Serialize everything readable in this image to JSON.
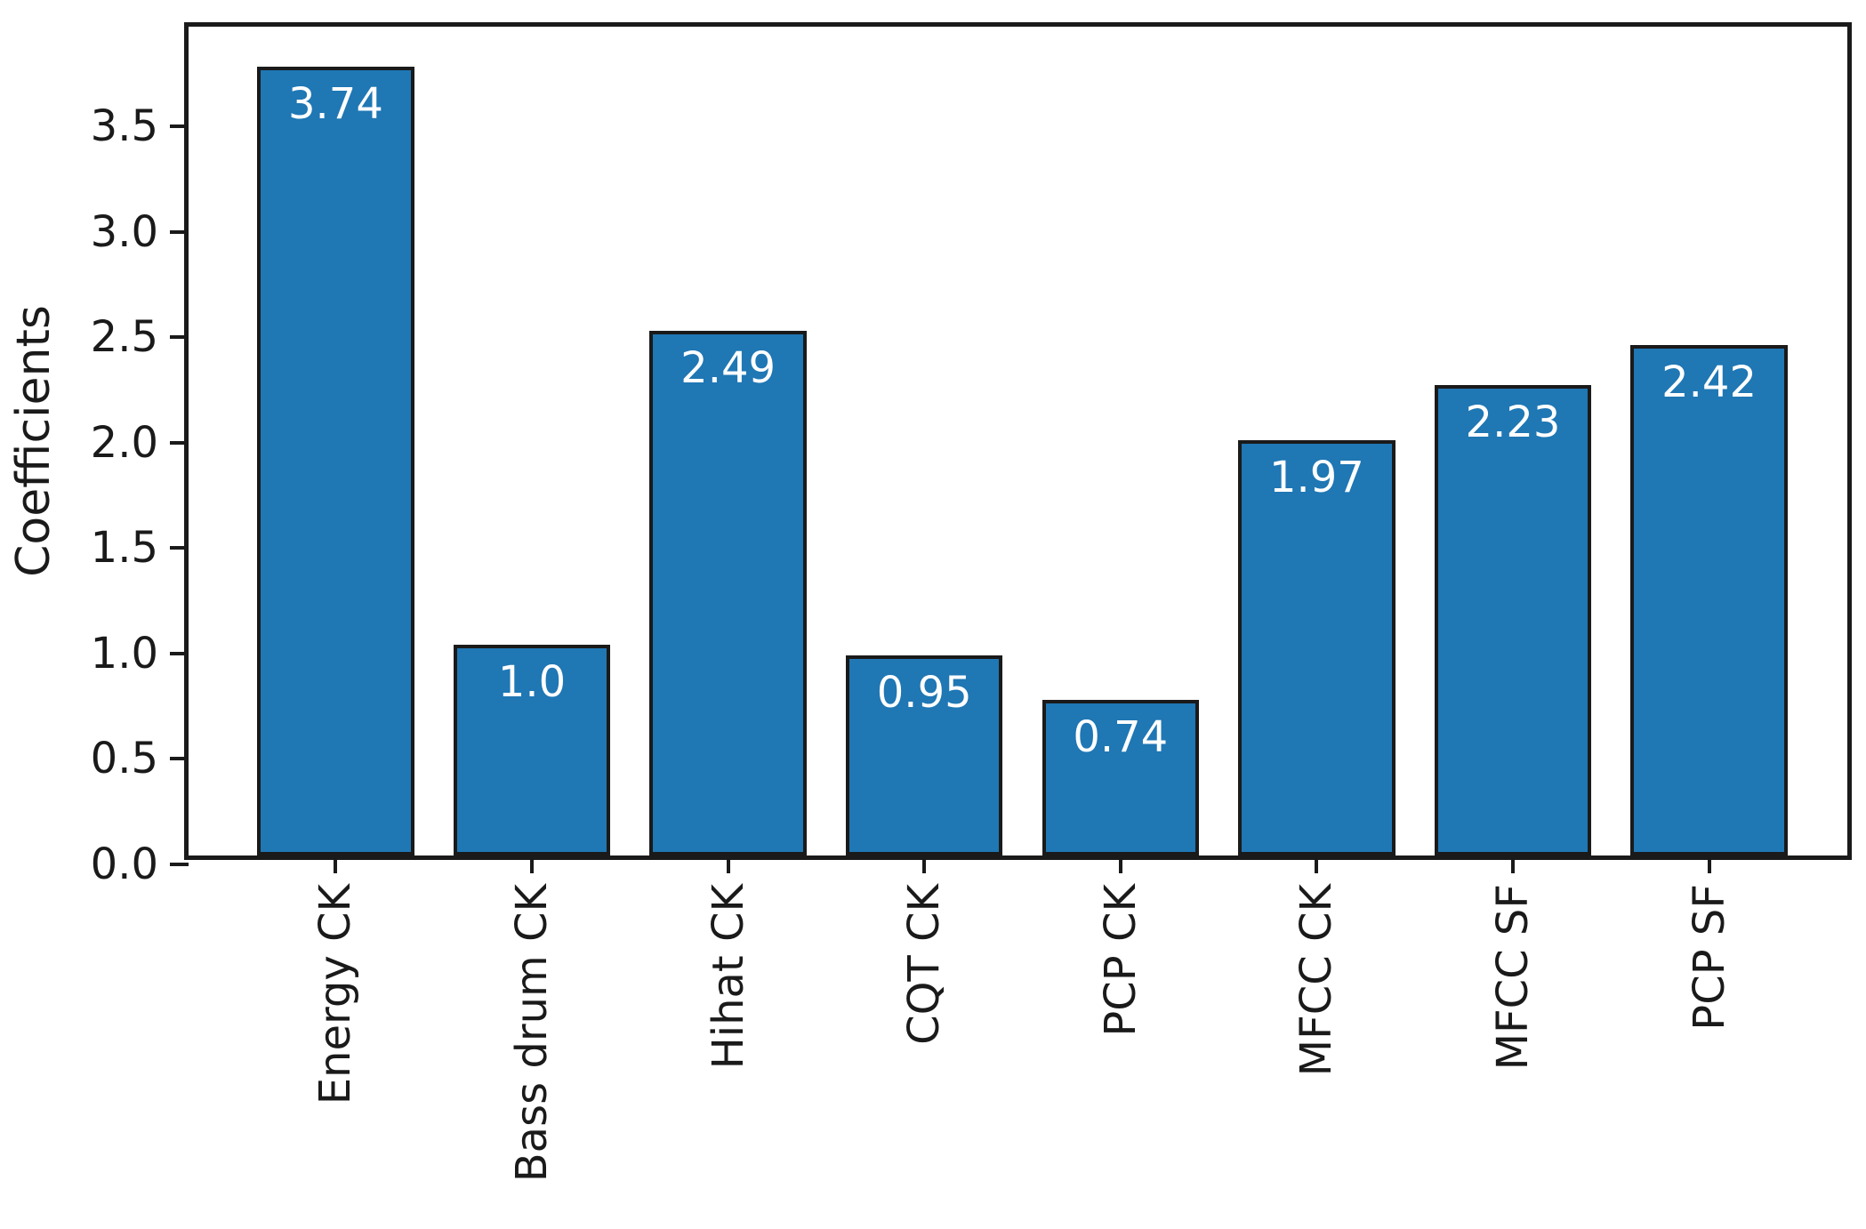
{
  "chart_data": {
    "type": "bar",
    "title": "",
    "xlabel": "",
    "ylabel": "Coefficients",
    "categories": [
      "Energy CK",
      "Bass drum CK",
      "Hihat CK",
      "CQT CK",
      "PCP CK",
      "MFCC CK",
      "MFCC SF",
      "PCP SF"
    ],
    "values": [
      3.74,
      1.0,
      2.49,
      0.95,
      0.74,
      1.97,
      2.23,
      2.42
    ],
    "bar_value_labels": [
      "3.74",
      "1.0",
      "2.49",
      "0.95",
      "0.74",
      "1.97",
      "2.23",
      "2.42"
    ],
    "yticks": [
      0.0,
      0.5,
      1.0,
      1.5,
      2.0,
      2.5,
      3.0,
      3.5
    ],
    "ytick_labels": [
      "0.0",
      "0.5",
      "1.0",
      "1.5",
      "2.0",
      "2.5",
      "3.0",
      "3.5"
    ],
    "ylim": [
      0,
      3.93
    ],
    "xlim": [
      -0.75,
      7.75
    ],
    "bar_width_units": 0.8,
    "x_tick_rotation_deg": 90,
    "grid": false,
    "legend": null,
    "colors": {
      "bar_fill": "#1f77b4",
      "bar_edge": "#1a1a1a",
      "axis": "#1a1a1a",
      "tick_text": "#1a1a1a",
      "value_label_text": "#ffffff",
      "background": "#ffffff"
    }
  }
}
